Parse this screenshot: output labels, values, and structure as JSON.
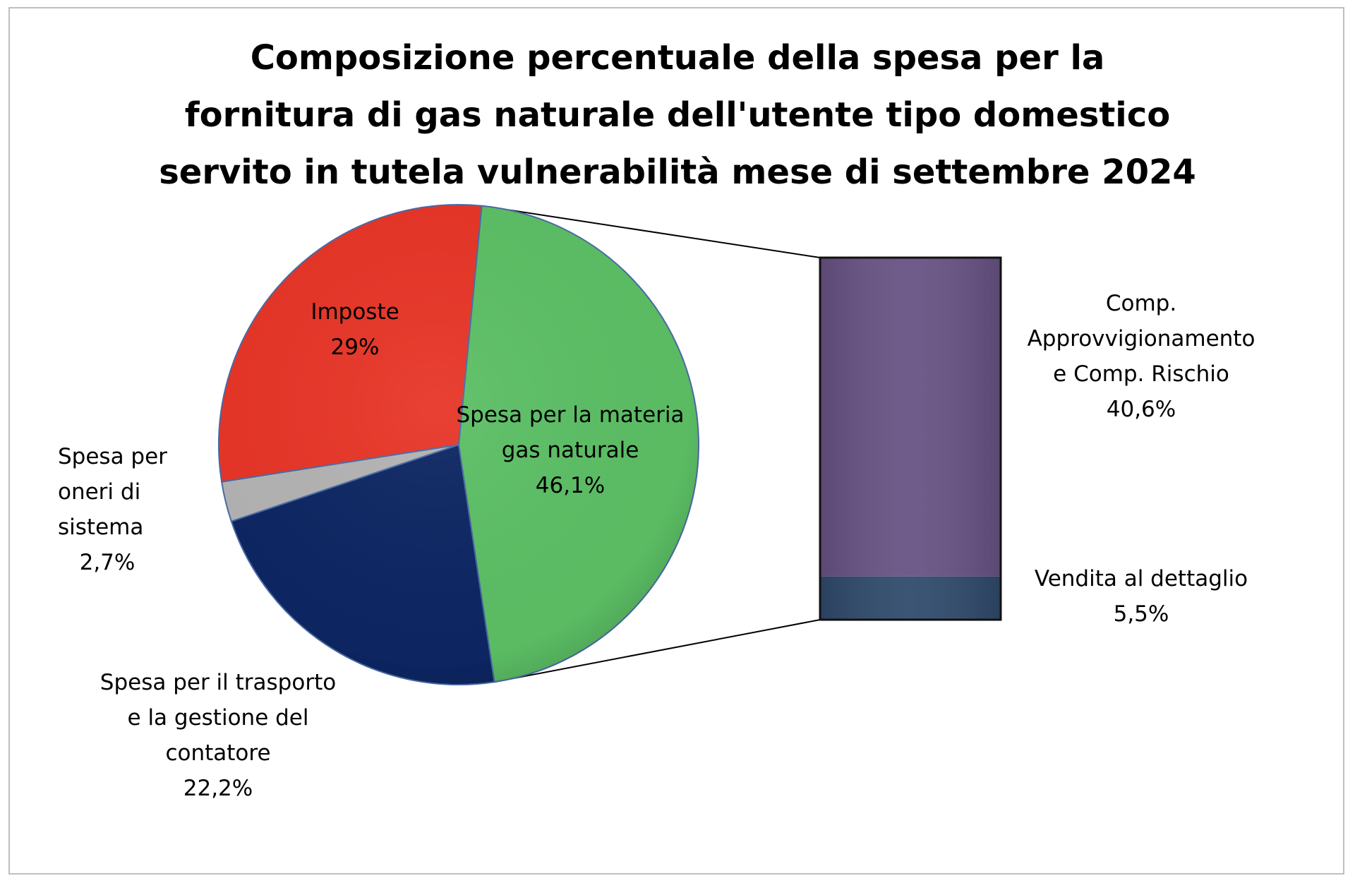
{
  "chart_data": {
    "type": "pie",
    "title": "Composizione percentuale della spesa per la fornitura di gas naturale dell'utente tipo domestico servito in tutela vulnerabilità mese di settembre 2024",
    "title_lines": [
      "Composizione percentuale della spesa per la",
      "fornitura di gas naturale dell'utente tipo domestico",
      "servito in tutela vulnerabilità mese di settembre 2024"
    ],
    "variant": "pie-of-bar",
    "slices": [
      {
        "key": "materia",
        "label_lines": [
          "Spesa per la materia",
          "gas naturale"
        ],
        "value_label": "46,1%",
        "value": 46.1,
        "color": "#5cbf65"
      },
      {
        "key": "trasporto",
        "label_lines": [
          "Spesa per il trasporto",
          "e la gestione del",
          "contatore"
        ],
        "value_label": "22,2%",
        "value": 22.2,
        "color": "#0d2663"
      },
      {
        "key": "oneri",
        "label_lines": [
          "Spesa per",
          "oneri di",
          "sistema"
        ],
        "value_label": "2,7%",
        "value": 2.7,
        "color": "#b3b3b3"
      },
      {
        "key": "imposte",
        "label_lines": [
          "Imposte"
        ],
        "value_label": "29%",
        "value": 29,
        "color": "#e73527"
      }
    ],
    "breakdown": {
      "of_slice": "materia",
      "segments": [
        {
          "key": "approvvigionamento",
          "label_lines": [
            "Comp.",
            "Approvvigionamento",
            "e  Comp. Rischio"
          ],
          "value_label": "40,6%",
          "value": 40.6,
          "color": "#675283"
        },
        {
          "key": "vendita",
          "label_lines": [
            "Vendita al dettaglio"
          ],
          "value_label": "5,5%",
          "value": 5.5,
          "color": "#2f4a6b"
        }
      ]
    }
  }
}
